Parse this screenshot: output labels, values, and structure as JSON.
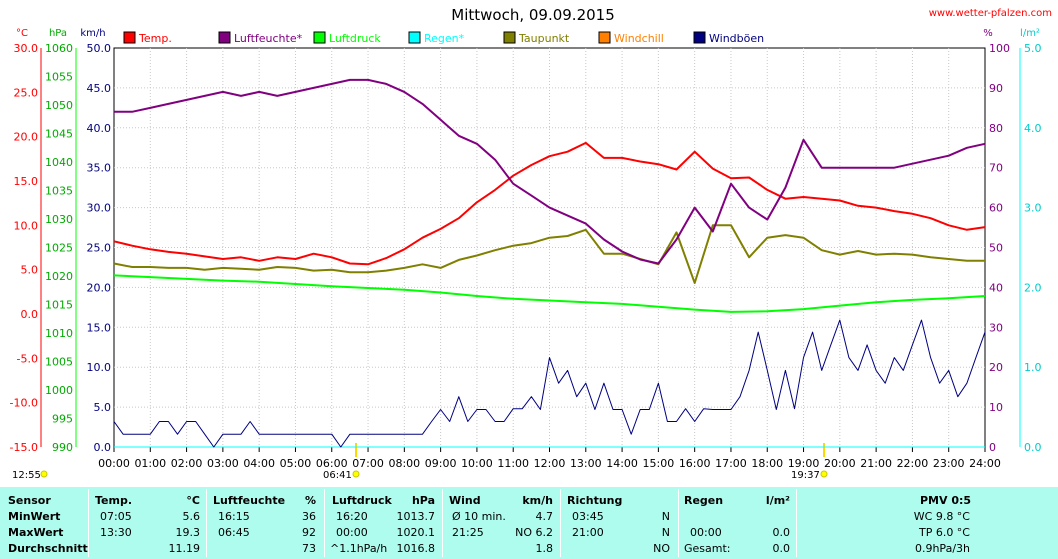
{
  "page": {
    "title": "Mittwoch, 09.09.2015",
    "site": "www.wetter-pfalzen.com",
    "sunrise_left": "12:55",
    "sunrise_time": "06:41",
    "sunset_time": "19:37"
  },
  "legend": [
    {
      "label": "Temp.",
      "color": "#ff0000"
    },
    {
      "label": "Luftfeuchte*",
      "color": "#800080"
    },
    {
      "label": "Luftdruck",
      "color": "#00ff00"
    },
    {
      "label": "Regen*",
      "color": "#00ffff"
    },
    {
      "label": "Taupunkt",
      "color": "#808000"
    },
    {
      "label": "Windchill",
      "color": "#ff8000"
    },
    {
      "label": "Windböen",
      "color": "#000080"
    }
  ],
  "axes": {
    "unit_temp": "°C",
    "unit_hpa": "hPa",
    "unit_kmh": "km/h",
    "unit_pct": "%",
    "unit_rain": "l/m²",
    "temp_ticks": [
      "30.0",
      "25.0",
      "20.0",
      "15.0",
      "10.0",
      "5.0",
      "0.0",
      "-5.0",
      "-10.0",
      "-15.0"
    ],
    "hpa_ticks": [
      "1060",
      "1055",
      "1050",
      "1045",
      "1040",
      "1035",
      "1030",
      "1025",
      "1020",
      "1015",
      "1010",
      "1005",
      "1000",
      "995",
      "990"
    ],
    "kmh_ticks": [
      "50.0",
      "45.0",
      "40.0",
      "35.0",
      "30.0",
      "25.0",
      "20.0",
      "15.0",
      "10.0",
      "5.0",
      "0.0"
    ],
    "pct_ticks": [
      "100",
      "90",
      "80",
      "70",
      "60",
      "50",
      "40",
      "30",
      "20",
      "10",
      "0"
    ],
    "rain_ticks": [
      "5.0",
      "4.0",
      "3.0",
      "2.0",
      "1.0",
      "0.0"
    ],
    "hour_ticks": [
      "00:00",
      "01:00",
      "02:00",
      "03:00",
      "04:00",
      "05:00",
      "06:00",
      "07:00",
      "08:00",
      "09:00",
      "10:00",
      "11:00",
      "12:00",
      "13:00",
      "14:00",
      "15:00",
      "16:00",
      "17:00",
      "18:00",
      "19:00",
      "20:00",
      "21:00",
      "22:00",
      "23:00",
      "24:00"
    ]
  },
  "chart_data": {
    "type": "line",
    "title": "Mittwoch, 09.09.2015",
    "xlim": [
      0,
      24
    ],
    "series": [
      {
        "name": "Temp.",
        "axis": "°C",
        "color": "#ff0000",
        "x": [
          0,
          0.5,
          1,
          1.5,
          2,
          2.5,
          3,
          3.5,
          4,
          4.5,
          5,
          5.5,
          6,
          6.5,
          7,
          7.5,
          8,
          8.5,
          9,
          9.5,
          10,
          10.5,
          11,
          11.5,
          12,
          12.5,
          13,
          13.5,
          14,
          14.5,
          15,
          15.5,
          16,
          16.5,
          17,
          17.5,
          18,
          18.5,
          19,
          19.5,
          20,
          20.5,
          21,
          21.5,
          22,
          22.5,
          23,
          23.5,
          24
        ],
        "values": [
          8.2,
          7.7,
          7.3,
          7.0,
          6.8,
          6.5,
          6.2,
          6.4,
          6.0,
          6.4,
          6.2,
          6.8,
          6.4,
          5.7,
          5.6,
          6.3,
          7.3,
          8.6,
          9.6,
          10.8,
          12.6,
          14.0,
          15.6,
          16.8,
          17.8,
          18.3,
          19.3,
          17.6,
          17.6,
          17.2,
          16.9,
          16.3,
          18.3,
          16.4,
          15.3,
          15.4,
          14.0,
          13.0,
          13.2,
          13.0,
          12.8,
          12.2,
          12.0,
          11.6,
          11.3,
          10.8,
          10.0,
          9.5,
          9.8
        ]
      },
      {
        "name": "Luftfeuchte*",
        "axis": "%",
        "color": "#800080",
        "x": [
          0,
          0.5,
          1,
          1.5,
          2,
          2.5,
          3,
          3.5,
          4,
          4.5,
          5,
          5.5,
          6,
          6.5,
          7,
          7.5,
          8,
          8.5,
          9,
          9.5,
          10,
          10.5,
          11,
          11.5,
          12,
          12.5,
          13,
          13.5,
          14,
          14.5,
          15,
          15.5,
          16,
          16.5,
          17,
          17.5,
          18,
          18.5,
          19,
          19.5,
          20,
          20.5,
          21,
          21.5,
          22,
          22.5,
          23,
          23.5,
          24
        ],
        "values": [
          84,
          84,
          85,
          86,
          87,
          88,
          89,
          88,
          89,
          88,
          89,
          90,
          91,
          92,
          92,
          91,
          89,
          86,
          82,
          78,
          76,
          72,
          66,
          63,
          60,
          58,
          56,
          52,
          49,
          47,
          46,
          52,
          60,
          54,
          66,
          60,
          57,
          65,
          77,
          70,
          70,
          70,
          70,
          70,
          71,
          72,
          73,
          75,
          76
        ]
      },
      {
        "name": "Luftdruck",
        "axis": "hPa",
        "color": "#00ff00",
        "x": [
          0,
          1,
          2,
          3,
          4,
          5,
          6,
          7,
          8,
          9,
          10,
          11,
          12,
          13,
          14,
          15,
          16,
          17,
          18,
          19,
          20,
          21,
          22,
          23,
          24
        ],
        "values": [
          1020.1,
          1019.8,
          1019.5,
          1019.2,
          1019.0,
          1018.6,
          1018.2,
          1017.9,
          1017.6,
          1017.1,
          1016.5,
          1016.0,
          1015.7,
          1015.4,
          1015.1,
          1014.6,
          1014.1,
          1013.7,
          1013.8,
          1014.2,
          1014.8,
          1015.4,
          1015.8,
          1016.1,
          1016.5
        ]
      },
      {
        "name": "Regen*",
        "axis": "l/m²",
        "color": "#00ffff",
        "x": [
          0,
          24
        ],
        "values": [
          0.0,
          0.0
        ]
      },
      {
        "name": "Taupunkt",
        "axis": "°C",
        "color": "#808000",
        "x": [
          0,
          0.5,
          1,
          1.5,
          2,
          2.5,
          3,
          3.5,
          4,
          4.5,
          5,
          5.5,
          6,
          6.5,
          7,
          7.5,
          8,
          8.5,
          9,
          9.5,
          10,
          10.5,
          11,
          11.5,
          12,
          12.5,
          13,
          13.5,
          14,
          14.5,
          15,
          15.5,
          16,
          16.5,
          17,
          17.5,
          18,
          18.5,
          19,
          19.5,
          20,
          20.5,
          21,
          21.5,
          22,
          22.5,
          23,
          23.5,
          24
        ],
        "values": [
          5.7,
          5.3,
          5.3,
          5.2,
          5.2,
          5.0,
          5.2,
          5.1,
          5.0,
          5.3,
          5.2,
          4.9,
          5.0,
          4.7,
          4.7,
          4.9,
          5.2,
          5.6,
          5.2,
          6.1,
          6.6,
          7.2,
          7.7,
          8.0,
          8.6,
          8.8,
          9.5,
          6.8,
          6.8,
          6.2,
          5.6,
          9.2,
          3.5,
          10.0,
          10.0,
          6.4,
          8.6,
          8.9,
          8.6,
          7.2,
          6.7,
          7.1,
          6.7,
          6.8,
          6.7,
          6.4,
          6.2,
          6.0,
          6.0
        ]
      },
      {
        "name": "Windchill",
        "axis": "°C",
        "color": "#ff8000",
        "x": [],
        "values": []
      },
      {
        "name": "Windböen",
        "axis": "km/h",
        "color": "#000080",
        "x": [
          0,
          0.25,
          0.5,
          0.75,
          1,
          1.25,
          1.5,
          1.75,
          2,
          2.25,
          2.5,
          2.75,
          3,
          3.25,
          3.5,
          3.75,
          4,
          4.25,
          4.5,
          4.75,
          5,
          5.25,
          5.5,
          5.75,
          6,
          6.25,
          6.5,
          6.75,
          7,
          7.25,
          7.5,
          7.75,
          8,
          8.25,
          8.5,
          8.75,
          9,
          9.25,
          9.5,
          9.75,
          10,
          10.25,
          10.5,
          10.75,
          11,
          11.25,
          11.5,
          11.75,
          12,
          12.25,
          12.5,
          12.75,
          13,
          13.25,
          13.5,
          13.75,
          14,
          14.25,
          14.5,
          14.75,
          15,
          15.25,
          15.5,
          15.75,
          16,
          16.25,
          16.5,
          16.75,
          17,
          17.25,
          17.5,
          17.75,
          18,
          18.25,
          18.5,
          18.75,
          19,
          19.25,
          19.5,
          19.75,
          20,
          20.25,
          20.5,
          20.75,
          21,
          21.25,
          21.5,
          21.75,
          22,
          22.25,
          22.5,
          22.75,
          23,
          23.25,
          23.5,
          23.75,
          24
        ],
        "values": [
          3.2,
          1.6,
          1.6,
          1.6,
          1.6,
          3.2,
          3.2,
          1.6,
          3.2,
          3.2,
          1.6,
          0.0,
          1.6,
          1.6,
          1.6,
          3.2,
          1.6,
          1.6,
          1.6,
          1.6,
          1.6,
          1.6,
          1.6,
          1.6,
          1.6,
          0.0,
          1.6,
          1.6,
          1.6,
          1.6,
          1.6,
          1.6,
          1.6,
          1.6,
          1.6,
          3.2,
          4.7,
          3.2,
          6.3,
          3.2,
          4.7,
          4.7,
          3.2,
          3.2,
          4.8,
          4.8,
          6.3,
          4.7,
          11.2,
          8.0,
          9.6,
          6.3,
          8.0,
          4.7,
          8.0,
          4.7,
          4.7,
          1.6,
          4.7,
          4.7,
          8.0,
          3.2,
          3.2,
          4.8,
          3.2,
          4.8,
          4.7,
          4.7,
          4.7,
          6.3,
          9.6,
          14.4,
          9.6,
          4.7,
          9.6,
          4.8,
          11.2,
          14.4,
          9.6,
          12.8,
          15.9,
          11.2,
          9.6,
          12.8,
          9.6,
          8.0,
          11.2,
          9.6,
          12.8,
          15.9,
          11.2,
          8.0,
          9.6,
          6.3,
          8.0,
          11.2,
          14.4
        ]
      }
    ],
    "ranges": {
      "°C": [
        -15,
        30
      ],
      "hPa": [
        990,
        1060
      ],
      "km/h": [
        0,
        50
      ],
      "%": [
        0,
        100
      ],
      "l/m²": [
        0,
        5
      ]
    },
    "grid": true
  },
  "table": {
    "headers": {
      "sensor": "Sensor",
      "temp": "Temp.",
      "temp_unit": "°C",
      "hum": "Luftfeuchte",
      "hum_unit": "%",
      "press": "Luftdruck",
      "press_unit": "hPa",
      "wind": "Wind",
      "wind_unit": "km/h",
      "dir": "Richtung",
      "rain": "Regen",
      "rain_unit": "l/m²",
      "pmv": "PMV 0:5"
    },
    "rows": [
      {
        "label": "MinWert",
        "temp_time": "07:05",
        "temp_val": "5.6",
        "hum_time": "16:15",
        "hum_val": "36",
        "press_time": "16:20",
        "press_val": "1013.7",
        "wind_label": "Ø 10 min.",
        "wind_val": "4.7",
        "dir_time": "03:45",
        "dir_val": "N",
        "rain_time": "",
        "rain_val": "",
        "pmv": "WC 9.8 °C"
      },
      {
        "label": "MaxWert",
        "temp_time": "13:30",
        "temp_val": "19.3",
        "hum_time": "06:45",
        "hum_val": "92",
        "press_time": "00:00",
        "press_val": "1020.1",
        "wind_label": "21:25",
        "wind_val": "NO 6.2",
        "dir_time": "21:00",
        "dir_val": "N",
        "rain_time": "00:00",
        "rain_val": "0.0",
        "pmv": "TP 6.0 °C"
      },
      {
        "label": "Durchschnitt",
        "temp_time": "",
        "temp_val": "11.19",
        "hum_time": "",
        "hum_val": "73",
        "press_time": "^1.1hPa/h",
        "press_val": "1016.8",
        "wind_label": "",
        "wind_val": "1.8",
        "dir_time": "",
        "dir_val": "NO",
        "rain_time": "Gesamt:",
        "rain_val": "0.0",
        "pmv": "0.9hPa/3h"
      }
    ]
  }
}
